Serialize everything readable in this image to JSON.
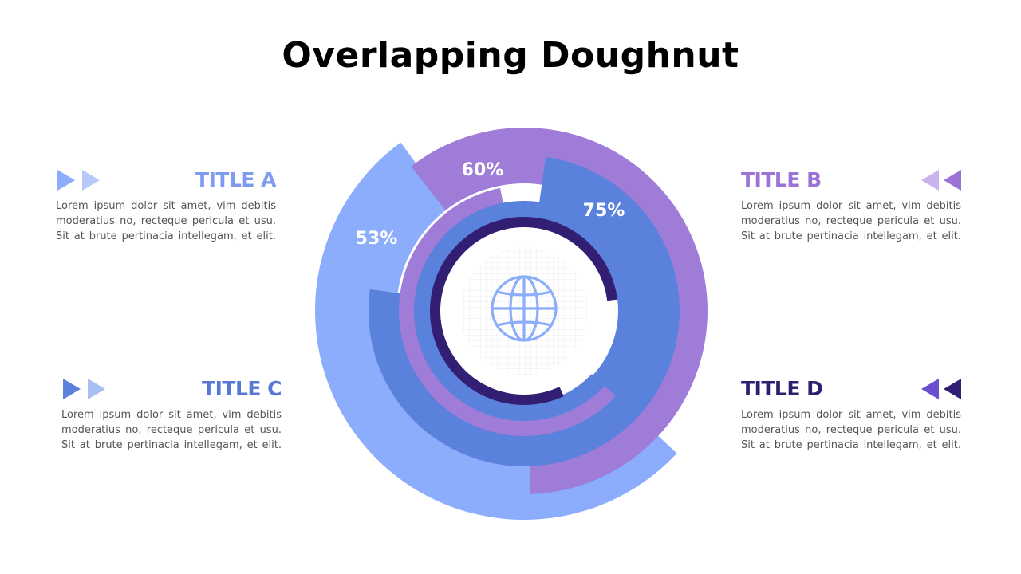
{
  "title": "Overlapping Doughnut",
  "items": [
    {
      "title": "TITLE A",
      "text": "Lorem ipsum dolor sit amet, vim debitis moderatius no, recteque pericula et usu. Sit at brute pertinacia intellegam, et elit.",
      "color": "#7f9bf0"
    },
    {
      "title": "TITLE B",
      "text": "Lorem ipsum dolor sit amet, vim debitis moderatius no, recteque pericula et usu. Sit at brute pertinacia intellegam, et elit.",
      "color": "#9b72d6"
    },
    {
      "title": "TITLE C",
      "text": "Lorem ipsum dolor sit amet, vim debitis moderatius no, recteque pericula et usu. Sit at brute pertinacia intellegam, et elit.",
      "color": "#5878d6"
    },
    {
      "title": "TITLE D",
      "text": "Lorem ipsum dolor sit amet, vim debitis moderatius no, recteque pericula et usu. Sit at brute pertinacia intellegam, et elit.",
      "color": "#301e6e"
    }
  ],
  "chart_data": {
    "type": "pie",
    "series": [
      {
        "label": "53%",
        "value": 53,
        "color": "#8badfc"
      },
      {
        "label": "60%",
        "value": 60,
        "color": "#9e7cd8"
      },
      {
        "label": "75%",
        "value": 75,
        "color": "#5a82dc"
      },
      {
        "label": "",
        "value": 60,
        "color": "#9e7cd8"
      },
      {
        "label": "",
        "value": 75,
        "color": "#5a82dc"
      },
      {
        "label": "",
        "value": 80,
        "color": "#321e72"
      }
    ]
  },
  "center_icon": "globe-icon"
}
